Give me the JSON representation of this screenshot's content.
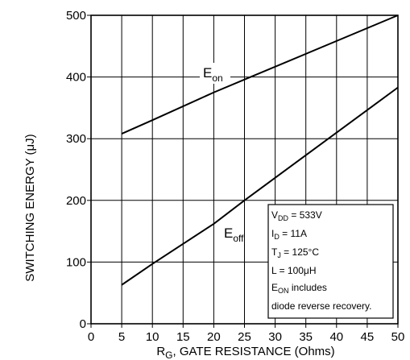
{
  "chart_data": {
    "type": "line",
    "xlabel": {
      "main": "R",
      "sub": "G",
      "rest": ", GATE RESISTANCE (Ohms)"
    },
    "ylabel": "SWITCHING ENERGY (μJ)",
    "xlim": [
      0,
      50
    ],
    "ylim": [
      0,
      500
    ],
    "x_ticks": [
      "0",
      "5",
      "10",
      "15",
      "20",
      "25",
      "30",
      "35",
      "40",
      "45",
      "50"
    ],
    "y_ticks": [
      "0",
      "100",
      "200",
      "300",
      "400",
      "500"
    ],
    "grid": true,
    "series": [
      {
        "name": {
          "main": "E",
          "sub": "on"
        },
        "x": [
          5,
          10,
          20,
          26,
          50
        ],
        "y": [
          308,
          330,
          375,
          400,
          500
        ]
      },
      {
        "name": {
          "main": "E",
          "sub": "off"
        },
        "x": [
          5,
          10,
          20,
          25,
          50
        ],
        "y": [
          63,
          97,
          162,
          200,
          383
        ]
      }
    ],
    "conditions": [
      {
        "main": "V",
        "sub": "DD",
        "rest": " = 533V"
      },
      {
        "main": "I",
        "sub": "D",
        "rest": " = 11A"
      },
      {
        "main": "T",
        "sub": "J",
        "rest": " = 125°C"
      },
      {
        "main": "L = 100μH",
        "sub": "",
        "rest": ""
      },
      {
        "main": "E",
        "sub": "ON",
        "rest": "  includes"
      },
      {
        "main": "diode reverse  recovery.",
        "sub": "",
        "rest": ""
      }
    ]
  }
}
